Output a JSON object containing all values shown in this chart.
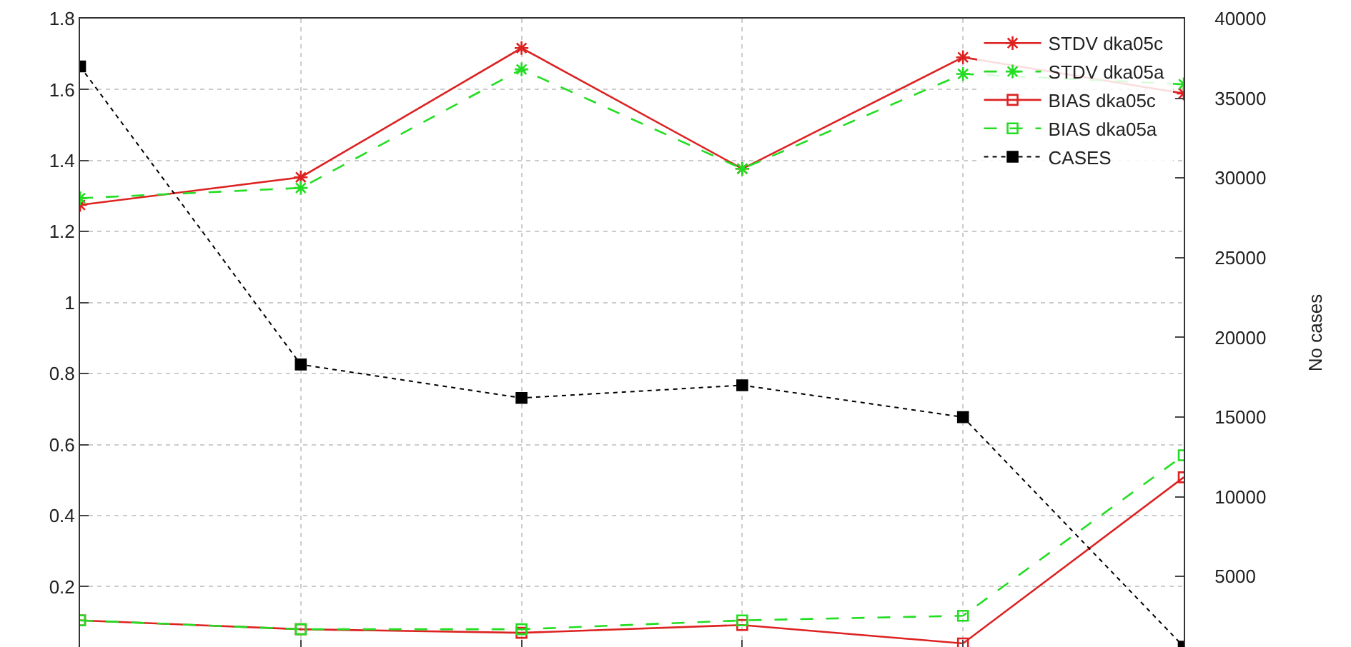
{
  "chart_data": {
    "type": "line",
    "categories": [
      null,
      null,
      null,
      null,
      null,
      null
    ],
    "ylim": [
      0.03,
      1.8
    ],
    "yticks": [
      0.2,
      0.4,
      0.6,
      0.8,
      {
        "value": 1,
        "label": "1"
      },
      1.2,
      1.4,
      1.6,
      1.8
    ],
    "y2lim": [
      580,
      40000
    ],
    "y2ticks": [
      5000,
      10000,
      15000,
      20000,
      25000,
      30000,
      35000,
      40000
    ],
    "y2label": "No cases",
    "grid": true,
    "legend": "top right",
    "tick_labels": "y",
    "series": [
      {
        "name": "STDV dka05c",
        "color": "#dd2222",
        "marker": "cross",
        "line_style": "solid",
        "values": [
          1.275,
          1.353,
          1.717,
          1.377,
          1.691,
          1.589
        ]
      },
      {
        "name": "STDV dka05a",
        "color": "#22dd22",
        "marker": "cross",
        "line_style": "dashed",
        "values": [
          1.294,
          1.323,
          1.657,
          1.377,
          1.644,
          1.615
        ]
      },
      {
        "name": "BIAS dka05c",
        "color": "#dd2222",
        "marker": "square",
        "line_style": "solid",
        "values": [
          0.105,
          0.08,
          0.07,
          0.092,
          0.04,
          0.508
        ]
      },
      {
        "name": "BIAS dka05a",
        "color": "#22dd22",
        "marker": "square",
        "line_style": "dashed",
        "values": [
          0.105,
          0.08,
          0.08,
          0.105,
          0.118,
          0.57
        ]
      },
      {
        "name": "CASES",
        "color": "#000000",
        "marker": "square",
        "line_style": "dotted",
        "axis": "y2",
        "values": [
          37000,
          18300,
          16200,
          17000,
          15000,
          600
        ]
      }
    ]
  }
}
